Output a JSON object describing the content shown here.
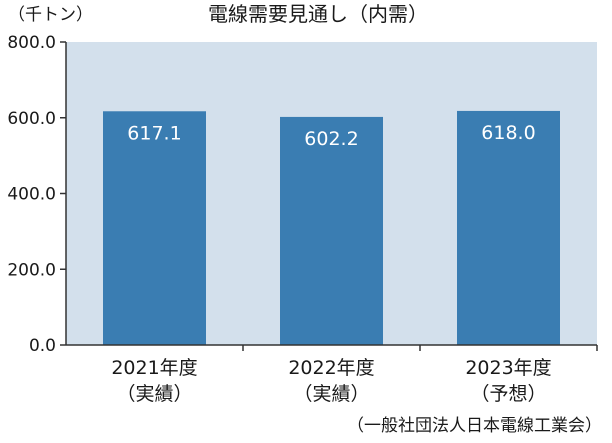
{
  "chart_data": {
    "type": "bar",
    "title": "電線需要見通し（内需）",
    "ylabel": "（千トン）",
    "source": "（一般社団法人日本電線工業会）",
    "categories": [
      {
        "line1": "2021年度",
        "line2": "（実績）"
      },
      {
        "line1": "2022年度",
        "line2": "（実績）"
      },
      {
        "line1": "2023年度",
        "line2": "（予想）"
      }
    ],
    "values": [
      617.1,
      602.2,
      618.0
    ],
    "value_labels": [
      "617.1",
      "602.2",
      "618.0"
    ],
    "ylim": [
      0,
      800
    ],
    "yticks": [
      0,
      200,
      400,
      600,
      800
    ],
    "ytick_labels": [
      "0.0",
      "200.0",
      "400.0",
      "600.0",
      "800.0"
    ],
    "grid": false,
    "colors": {
      "bar": "#3a7db2",
      "plot_background": "#d3e0ec",
      "axis": "#333333",
      "value_label": "#ffffff"
    }
  }
}
